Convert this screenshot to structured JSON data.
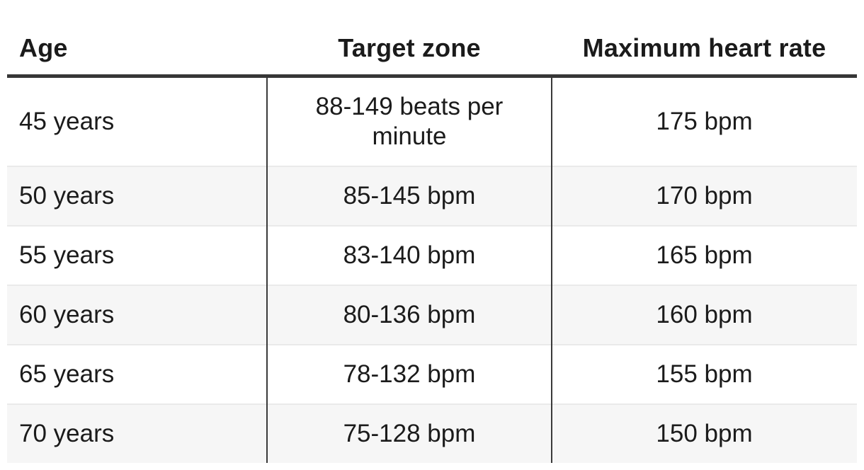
{
  "table": {
    "columns": [
      {
        "label": "Age"
      },
      {
        "label": "Target zone"
      },
      {
        "label": "Maximum heart rate"
      }
    ],
    "rows": [
      {
        "age": "45 years",
        "target_zone": "88-149 beats per minute",
        "max_heart_rate": "175 bpm"
      },
      {
        "age": "50 years",
        "target_zone": "85-145 bpm",
        "max_heart_rate": "170 bpm"
      },
      {
        "age": "55 years",
        "target_zone": "83-140 bpm",
        "max_heart_rate": "165 bpm"
      },
      {
        "age": "60 years",
        "target_zone": "80-136 bpm",
        "max_heart_rate": "160 bpm"
      },
      {
        "age": "65 years",
        "target_zone": "78-132 bpm",
        "max_heart_rate": "155 bpm"
      },
      {
        "age": "70 years",
        "target_zone": "75-128 bpm",
        "max_heart_rate": "150 bpm"
      }
    ],
    "colors": {
      "text": "#1b1b1b",
      "header_rule": "#363636",
      "column_divider": "#3a3a3a",
      "stripe_row": "#f6f6f6",
      "row_separator": "#eaeaea",
      "background": "#ffffff"
    }
  }
}
